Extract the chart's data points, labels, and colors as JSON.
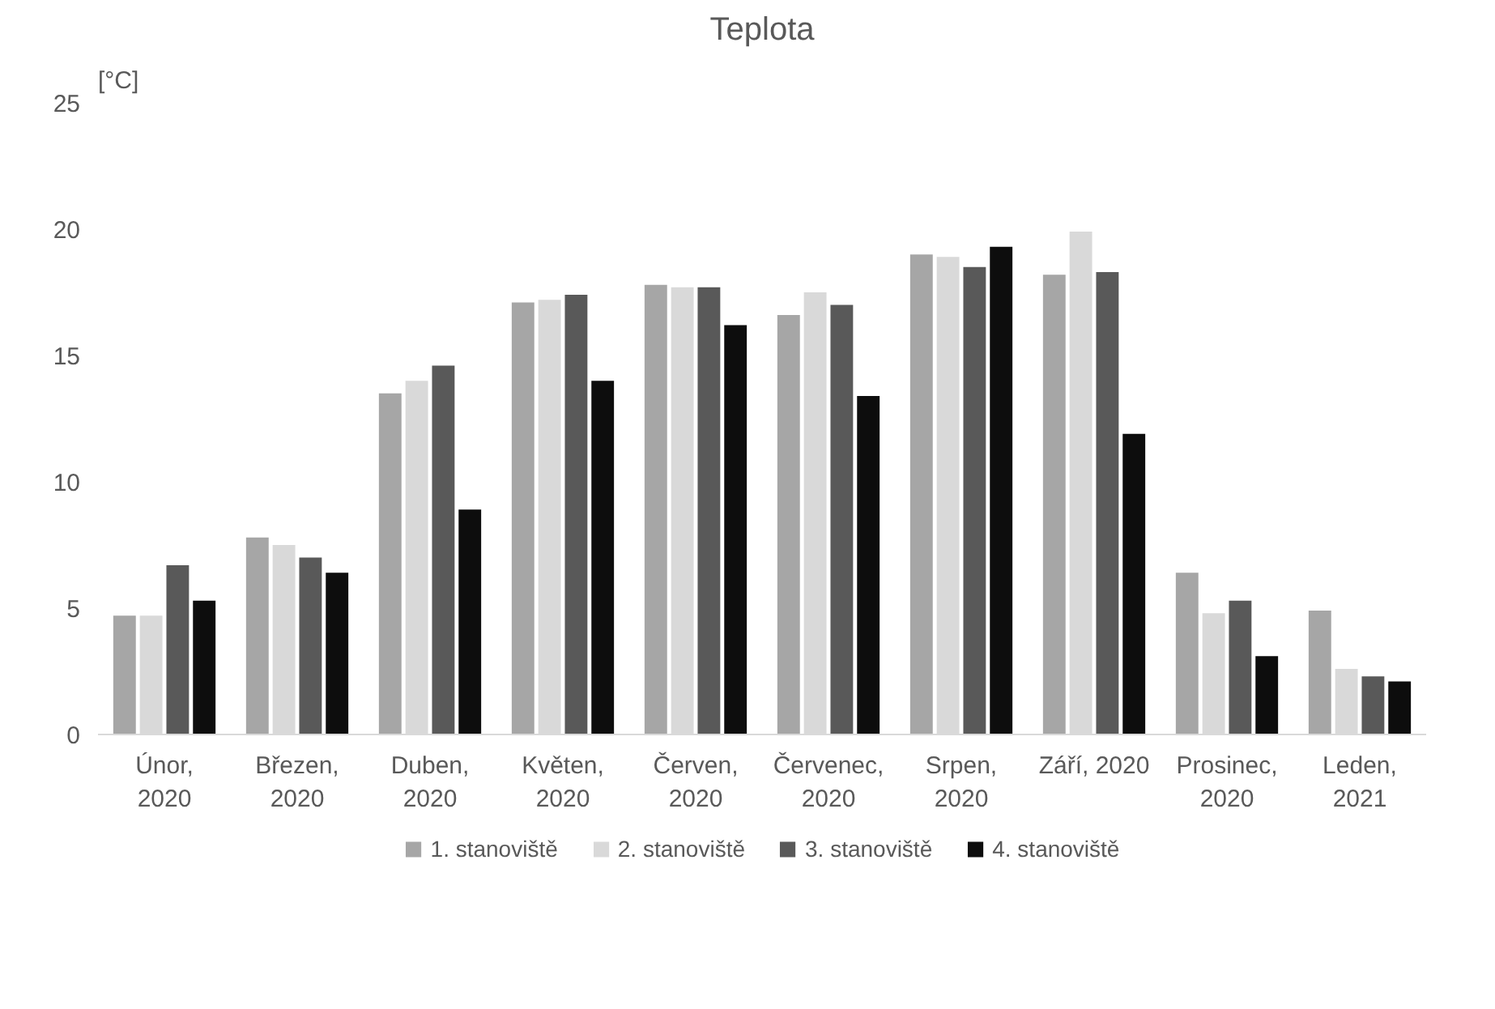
{
  "chart_data": {
    "type": "bar",
    "title": "Teplota",
    "ylabel": "[°C]",
    "categories": [
      "Únor,\n2020",
      "Březen,\n2020",
      "Duben,\n2020",
      "Květen,\n2020",
      "Červen,\n2020",
      "Červenec,\n2020",
      "Srpen,\n2020",
      "Září, 2020",
      "Prosinec,\n2020",
      "Leden,\n2021"
    ],
    "series": [
      {
        "name": "1. stanoviště",
        "color": "#a6a6a6",
        "values": [
          4.7,
          7.8,
          13.5,
          17.1,
          17.8,
          16.6,
          19.0,
          18.2,
          6.4,
          4.9
        ]
      },
      {
        "name": "2. stanoviště",
        "color": "#d9d9d9",
        "values": [
          4.7,
          7.5,
          14.0,
          17.2,
          17.7,
          17.5,
          18.9,
          19.9,
          4.8,
          2.6
        ]
      },
      {
        "name": "3. stanoviště",
        "color": "#595959",
        "values": [
          6.7,
          7.0,
          14.6,
          17.4,
          17.7,
          17.0,
          18.5,
          18.3,
          5.3,
          2.3
        ]
      },
      {
        "name": "4. stanoviště",
        "color": "#0d0d0d",
        "values": [
          5.3,
          6.4,
          8.9,
          14.0,
          16.2,
          13.4,
          19.3,
          11.9,
          3.1,
          2.1
        ]
      }
    ],
    "ylim": [
      0,
      25
    ],
    "yticks": [
      0,
      5,
      10,
      15,
      20,
      25
    ],
    "grid": false,
    "legend": "bottom"
  }
}
